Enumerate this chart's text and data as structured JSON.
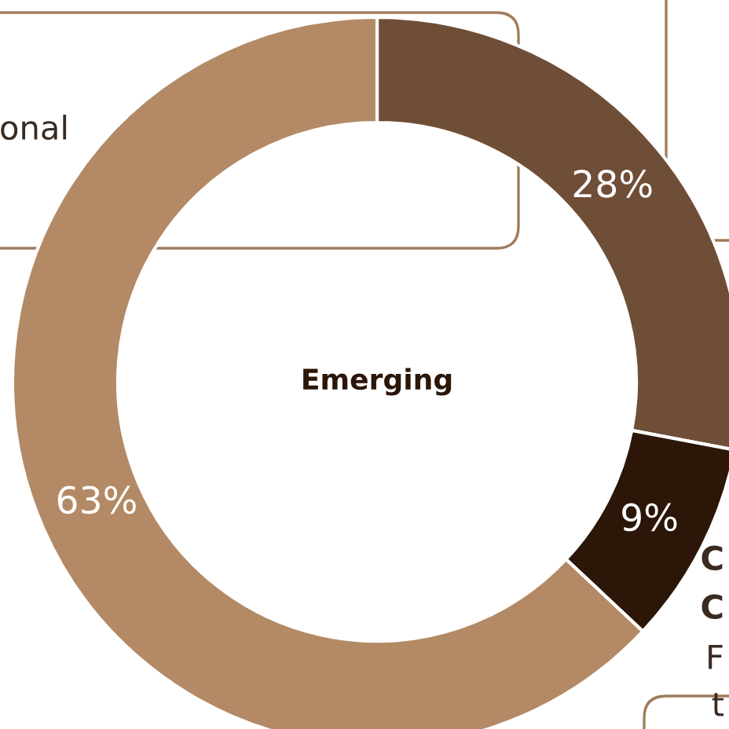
{
  "chart_data": {
    "type": "donut",
    "title": "Emerging",
    "categories": [
      null,
      null,
      null
    ],
    "values": [
      28,
      9,
      63
    ],
    "colors": [
      "#6f4e37",
      "#2b1608",
      "#b38a65"
    ],
    "value_labels": [
      "28%",
      "9%",
      "63%"
    ],
    "annotations": [
      "onal",
      "C",
      "C",
      "F",
      "t"
    ]
  }
}
